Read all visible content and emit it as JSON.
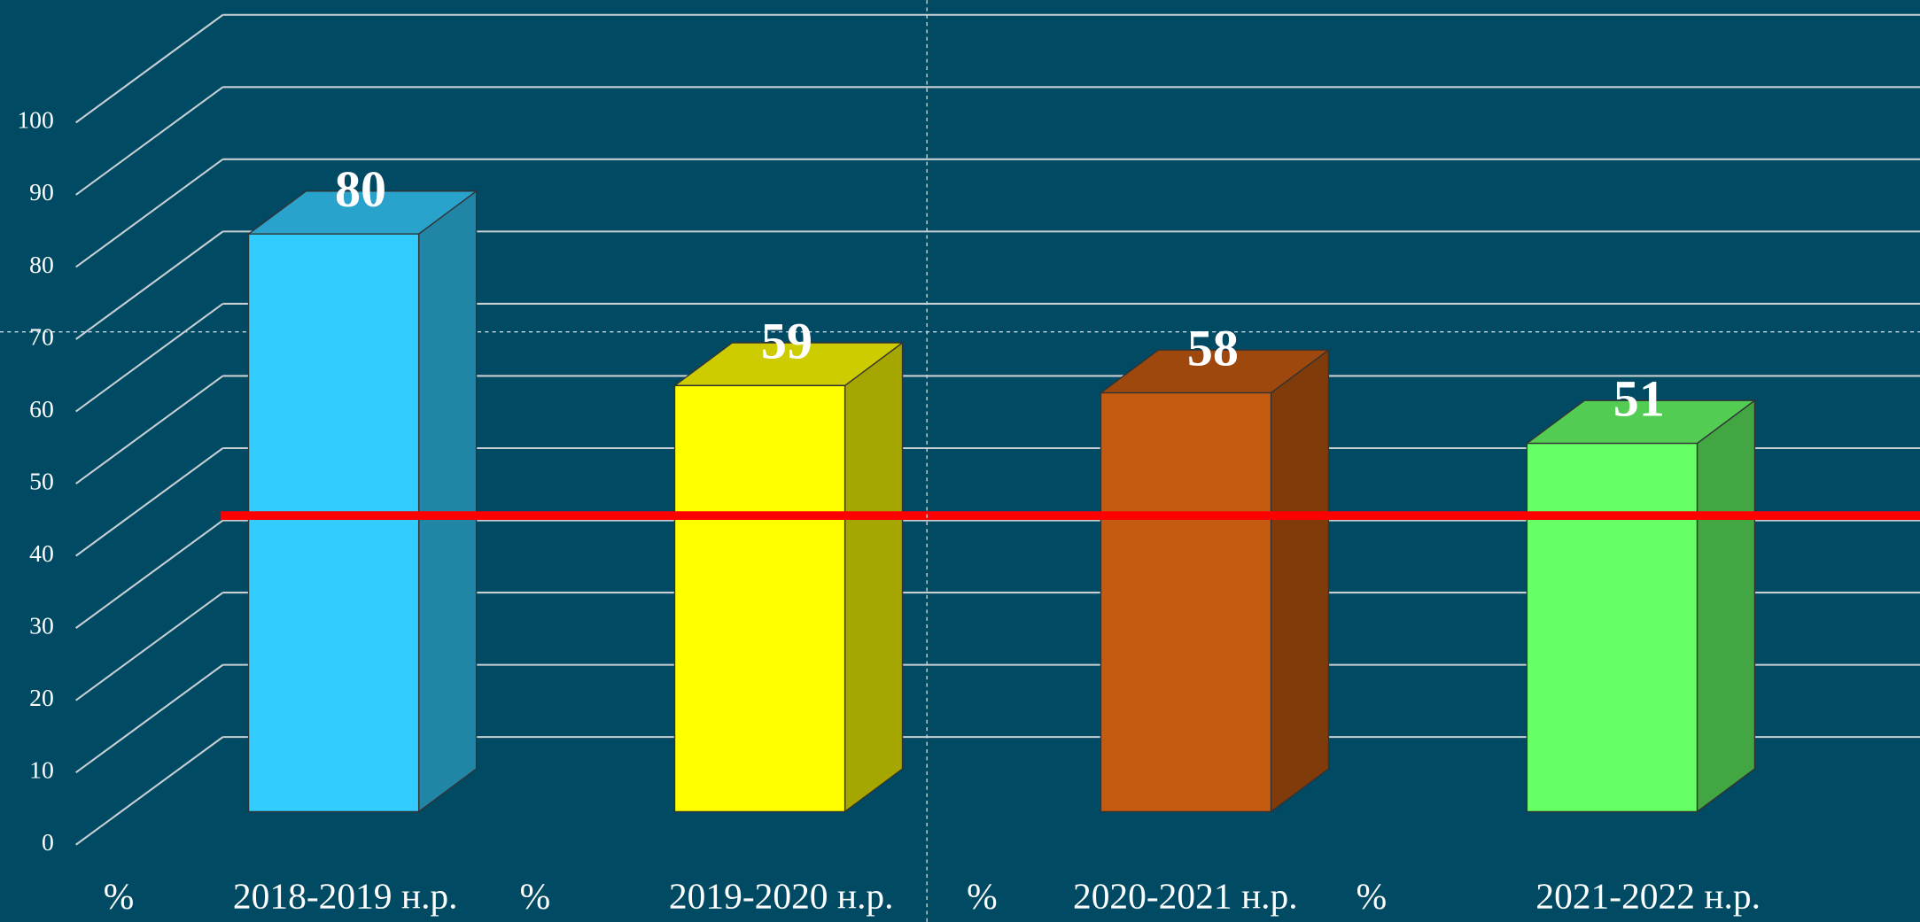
{
  "chart_data": {
    "type": "bar3d",
    "categories": [
      "2018-2019 н.р.",
      "2019-2020 н.р.",
      "2020-2021 н.р.",
      "2021-2022 н.р."
    ],
    "unit_labels": [
      "%",
      "%",
      "%",
      "%"
    ],
    "values": [
      80,
      59,
      58,
      51
    ],
    "colors": [
      "#33ccff",
      "#ffff00",
      "#c55a11",
      "#66ff66"
    ],
    "ylim": [
      0,
      100
    ],
    "yticks": [
      0,
      10,
      20,
      30,
      40,
      50,
      60,
      70,
      80,
      90,
      100
    ],
    "reference_line": {
      "value": 41,
      "color": "#ff0000"
    },
    "grid": true
  }
}
